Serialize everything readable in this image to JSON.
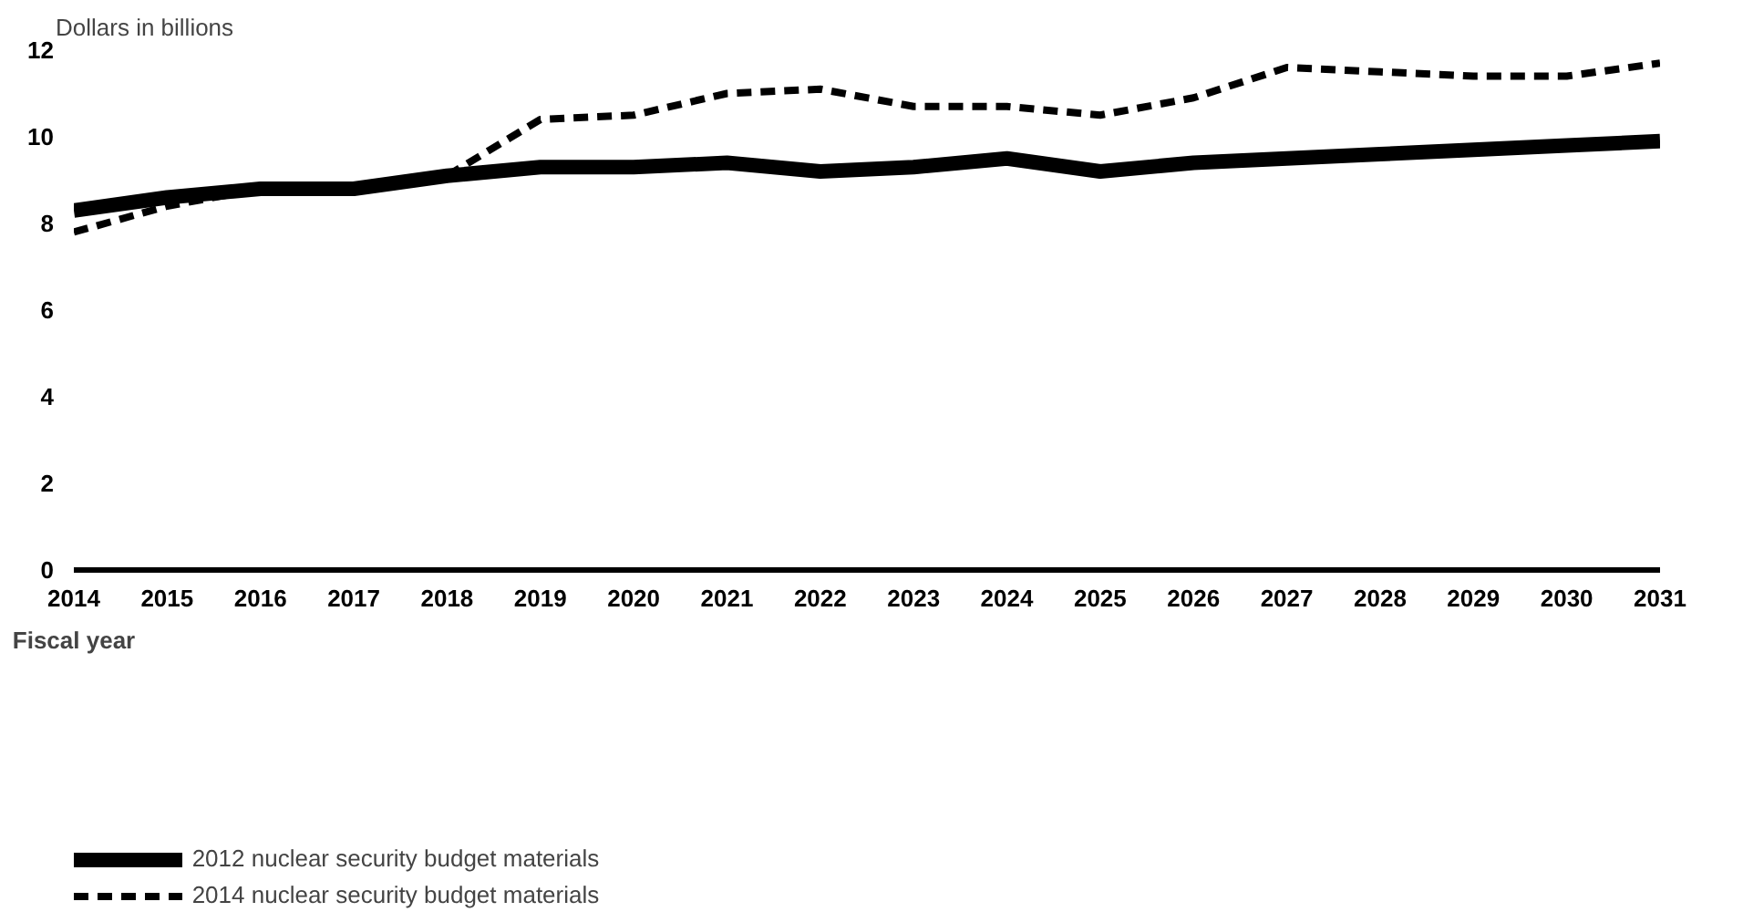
{
  "chart_data": {
    "type": "line",
    "ylabel": "Dollars in billions",
    "xlabel": "Fiscal year",
    "x": [
      2014,
      2015,
      2016,
      2017,
      2018,
      2019,
      2020,
      2021,
      2022,
      2023,
      2024,
      2025,
      2026,
      2027,
      2028,
      2029,
      2030,
      2031
    ],
    "xlim": [
      2014,
      2031
    ],
    "xticks": [
      2014,
      2015,
      2016,
      2017,
      2018,
      2019,
      2020,
      2021,
      2022,
      2023,
      2024,
      2025,
      2026,
      2027,
      2028,
      2029,
      2030,
      2031
    ],
    "ylim": [
      0,
      12
    ],
    "yticks": [
      0,
      2,
      4,
      6,
      8,
      10,
      12
    ],
    "grid": false,
    "legend": "bottom",
    "series": [
      {
        "name": "2012 nuclear security budget materials",
        "color": "#000000",
        "line_style": "solid",
        "values": [
          8.3,
          8.6,
          8.8,
          8.8,
          9.1,
          9.3,
          9.3,
          9.4,
          9.2,
          9.3,
          9.5,
          9.2,
          9.4,
          9.5,
          9.6,
          9.7,
          9.8,
          9.9
        ]
      },
      {
        "name": "2014 nuclear security budget materials",
        "color": "#000000",
        "line_style": "dashed",
        "values": [
          7.8,
          8.4,
          8.8,
          8.8,
          9.1,
          10.4,
          10.5,
          11.0,
          11.1,
          10.7,
          10.7,
          10.5,
          10.9,
          11.6,
          11.5,
          11.4,
          11.4,
          11.7
        ]
      }
    ]
  }
}
